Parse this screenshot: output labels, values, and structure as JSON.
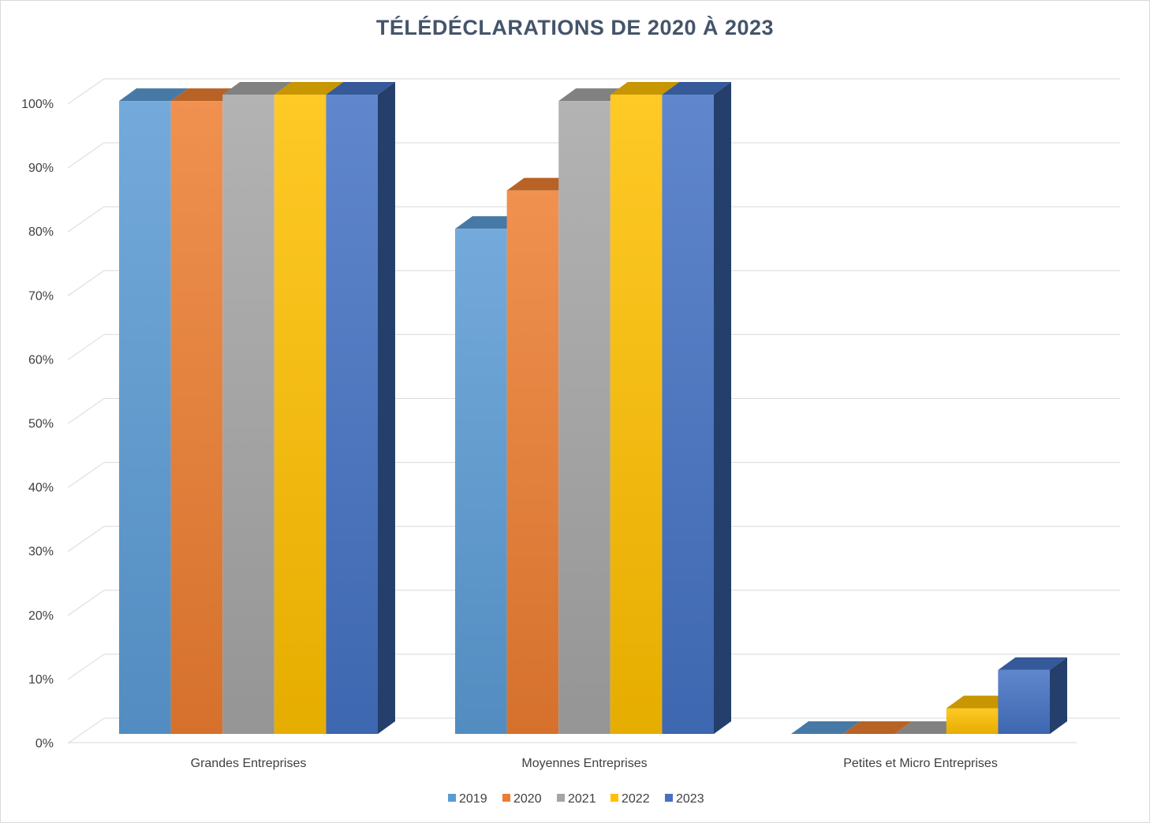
{
  "chart_data": {
    "type": "bar",
    "title": "TÉLÉDÉCLARATIONS DE 2020 À 2023",
    "xlabel": "",
    "ylabel": "",
    "ylim": [
      0,
      100
    ],
    "yticks": [
      "0%",
      "10%",
      "20%",
      "30%",
      "40%",
      "50%",
      "60%",
      "70%",
      "80%",
      "90%",
      "100%"
    ],
    "categories": [
      "Grandes Entreprises",
      "Moyennes Entreprises",
      "Petites et Micro Entreprises"
    ],
    "series": [
      {
        "name": "2019",
        "values": [
          99,
          79,
          0
        ],
        "color": "#5b9bd5"
      },
      {
        "name": "2020",
        "values": [
          99,
          85,
          0
        ],
        "color": "#ed7d31"
      },
      {
        "name": "2021",
        "values": [
          100,
          99,
          0
        ],
        "color": "#a5a5a5"
      },
      {
        "name": "2022",
        "values": [
          100,
          100,
          4
        ],
        "color": "#ffc000"
      },
      {
        "name": "2023",
        "values": [
          100,
          100,
          10
        ],
        "color": "#4472c4"
      }
    ],
    "legend_position": "bottom",
    "grid": true,
    "style": "3d-clustered-column"
  }
}
